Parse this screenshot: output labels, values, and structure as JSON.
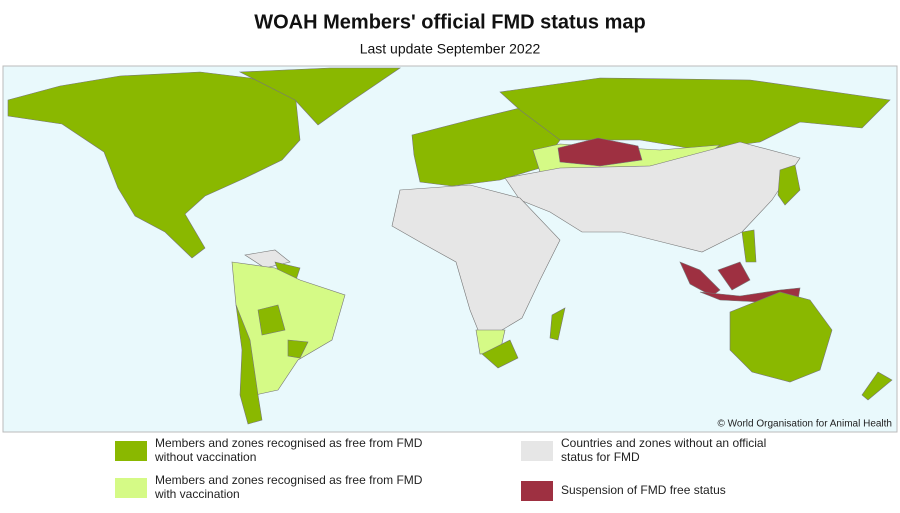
{
  "title": "WOAH Members' official FMD status map",
  "subtitle": "Last update September 2022",
  "copyright": "© World Organisation for Animal Health",
  "legend": [
    {
      "lines": [
        "Members and zones recognised as free from FMD",
        "without vaccination"
      ],
      "color": "#8ab800"
    },
    {
      "lines": [
        "Members and zones recognised as free from FMD",
        "with vaccination"
      ],
      "color": "#d5fa86"
    },
    {
      "lines": [
        "Countries and zones without an official",
        "status for FMD"
      ],
      "color": "#e6e6e6"
    },
    {
      "lines": [
        "Suspension of FMD free status"
      ],
      "color": "#9e3041"
    }
  ]
}
